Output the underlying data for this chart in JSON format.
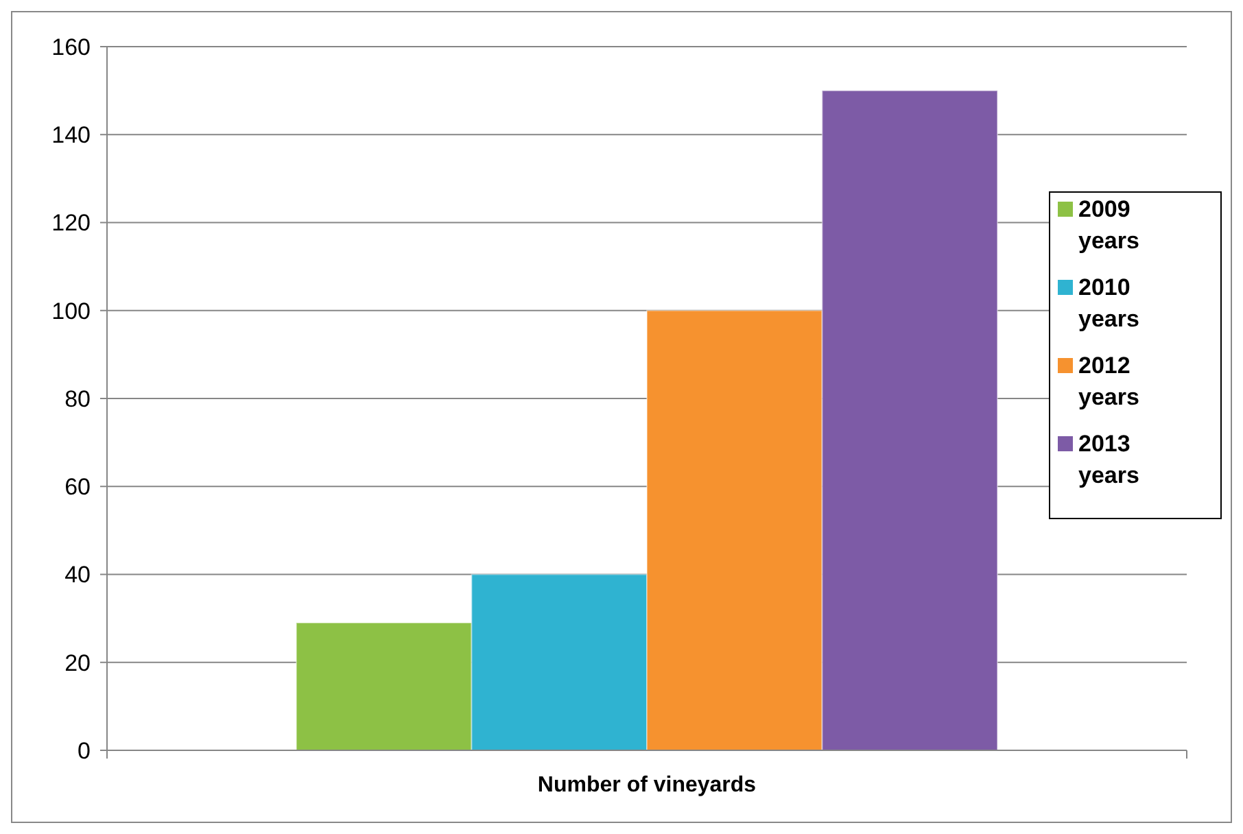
{
  "chart_data": {
    "type": "bar",
    "categories": [
      "Number of vineyards"
    ],
    "series": [
      {
        "name": "2009 years",
        "color": "#8dc145",
        "values": [
          29
        ]
      },
      {
        "name": "2010 years",
        "color": "#2fb3d1",
        "values": [
          40
        ]
      },
      {
        "name": "2012 years",
        "color": "#f6922f",
        "values": [
          100
        ]
      },
      {
        "name": "2013 years",
        "color": "#7d5ba6",
        "values": [
          150
        ]
      }
    ],
    "ylim": [
      0,
      160
    ],
    "yticks": [
      0,
      20,
      40,
      60,
      80,
      100,
      120,
      140,
      160
    ],
    "grid": "y",
    "legend": "right"
  }
}
